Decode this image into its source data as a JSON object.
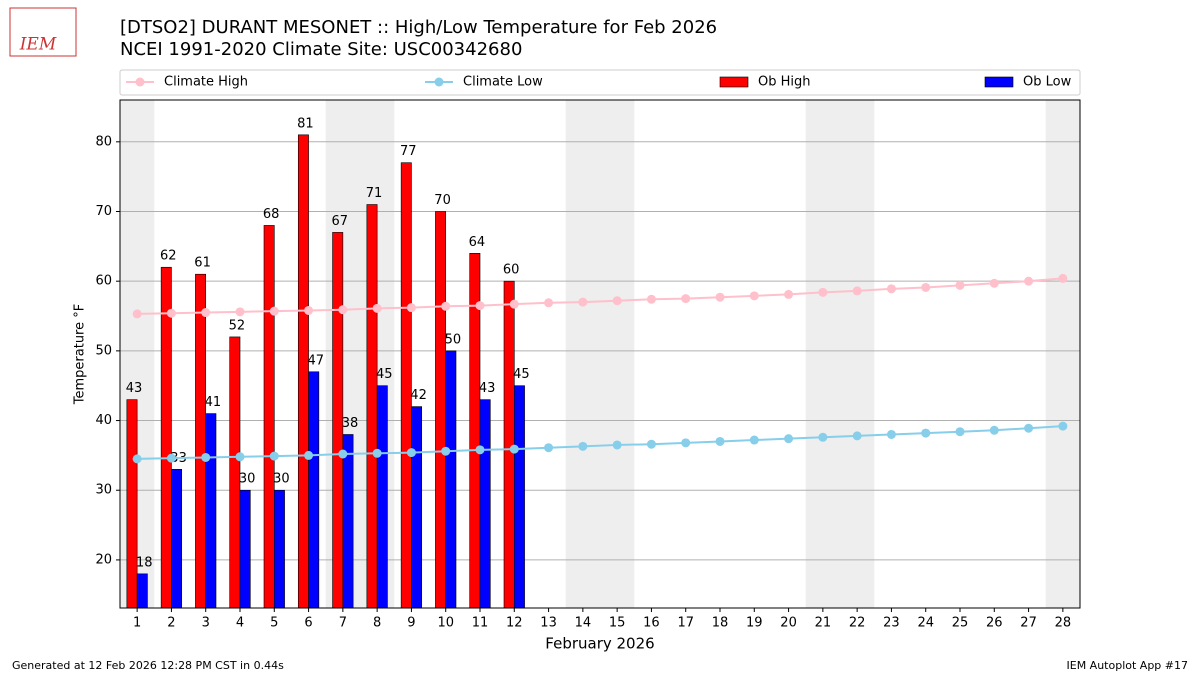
{
  "chart_data": {
    "type": "bar",
    "title": "[DTSO2] DURANT MESONET :: High/Low Temperature for Feb 2026",
    "subtitle": "NCEI 1991-2020 Climate Site: USC00342680",
    "logo_text": "IEM",
    "x_label": "February 2026",
    "y_label": "Temperature °F",
    "footer_left": "Generated at 12 Feb 2026 12:28 PM CST in 0.44s",
    "footer_right": "IEM Autoplot App #17",
    "x": [
      1,
      2,
      3,
      4,
      5,
      6,
      7,
      8,
      9,
      10,
      11,
      12,
      13,
      14,
      15,
      16,
      17,
      18,
      19,
      20,
      21,
      22,
      23,
      24,
      25,
      26,
      27,
      28
    ],
    "xlim": [
      0.5,
      28.5
    ],
    "xticks": [
      1,
      2,
      3,
      4,
      5,
      6,
      7,
      8,
      9,
      10,
      11,
      12,
      13,
      14,
      15,
      16,
      17,
      18,
      19,
      20,
      21,
      22,
      23,
      24,
      25,
      26,
      27,
      28
    ],
    "ylim": [
      13.1,
      86
    ],
    "yticks": [
      20,
      30,
      40,
      50,
      60,
      70,
      80
    ],
    "grid": true,
    "weekend_days": [
      1,
      7,
      8,
      14,
      15,
      21,
      22,
      28
    ],
    "series": [
      {
        "name": "Climate High",
        "kind": "line",
        "color": "#ffc0cb",
        "values": [
          55.3,
          55.4,
          55.5,
          55.6,
          55.7,
          55.8,
          55.9,
          56.1,
          56.2,
          56.4,
          56.5,
          56.7,
          56.9,
          57.0,
          57.2,
          57.4,
          57.5,
          57.7,
          57.9,
          58.1,
          58.4,
          58.6,
          58.9,
          59.1,
          59.4,
          59.7,
          60.0,
          60.4
        ]
      },
      {
        "name": "Climate Low",
        "kind": "line",
        "color": "#87ceeb",
        "values": [
          34.5,
          34.6,
          34.7,
          34.8,
          34.9,
          35.0,
          35.2,
          35.3,
          35.4,
          35.6,
          35.8,
          35.9,
          36.1,
          36.3,
          36.5,
          36.6,
          36.8,
          37.0,
          37.2,
          37.4,
          37.6,
          37.8,
          38.0,
          38.2,
          38.4,
          38.6,
          38.9,
          39.2
        ]
      },
      {
        "name": "Ob High",
        "kind": "bar",
        "color": "#ff0000",
        "values": [
          43,
          62,
          61,
          52,
          68,
          81,
          67,
          71,
          77,
          70,
          64,
          60,
          null,
          null,
          null,
          null,
          null,
          null,
          null,
          null,
          null,
          null,
          null,
          null,
          null,
          null,
          null,
          null
        ]
      },
      {
        "name": "Ob Low",
        "kind": "bar",
        "color": "#0000ff",
        "values": [
          18,
          33,
          41,
          30,
          30,
          47,
          38,
          45,
          42,
          50,
          43,
          45,
          null,
          null,
          null,
          null,
          null,
          null,
          null,
          null,
          null,
          null,
          null,
          null,
          null,
          null,
          null,
          null
        ]
      }
    ]
  }
}
